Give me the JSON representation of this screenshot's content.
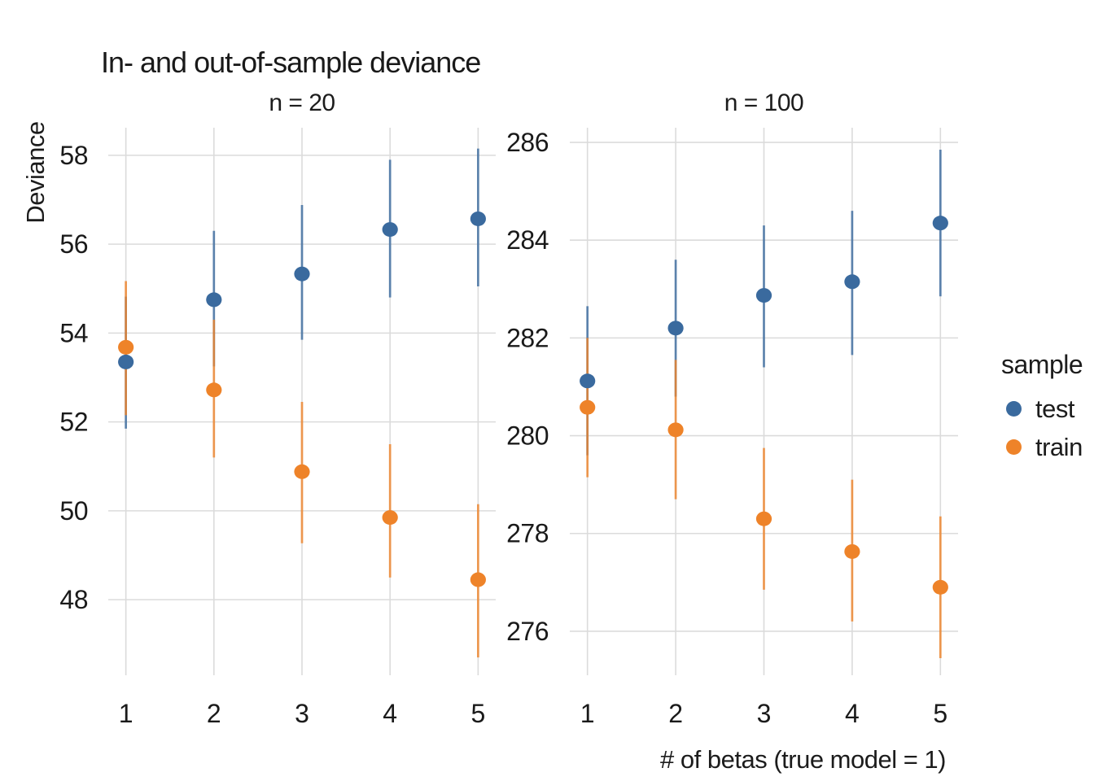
{
  "title": "In- and out-of-sample deviance",
  "y_axis_title": "Deviance",
  "x_axis_title": "# of betas (true model = 1)",
  "legend": {
    "title": "sample",
    "items": [
      {
        "label": "test",
        "color": "#3A6A9E"
      },
      {
        "label": "train",
        "color": "#EE8329"
      }
    ]
  },
  "style_colors": {
    "grid": "#DBDBDB",
    "tick_text": "#1A1A1A",
    "background": "#FFFFFF"
  },
  "chart_data": [
    {
      "type": "scatter",
      "facet": "n = 20",
      "x": [
        1,
        2,
        3,
        4,
        5
      ],
      "xlim": [
        0.8,
        5.2
      ],
      "ylim": [
        46.3,
        58.62
      ],
      "yticks": [
        48,
        50,
        52,
        54,
        56,
        58
      ],
      "xticks": [
        1,
        2,
        3,
        4,
        5
      ],
      "grid": true,
      "series": [
        {
          "name": "test",
          "color": "#3A6A9E",
          "values": [
            53.35,
            54.75,
            55.33,
            56.33,
            56.57
          ],
          "lower": [
            51.85,
            53.25,
            53.85,
            54.8,
            55.05
          ],
          "upper": [
            54.82,
            56.3,
            56.88,
            57.9,
            58.15
          ]
        },
        {
          "name": "train",
          "color": "#EE8329",
          "values": [
            53.68,
            52.72,
            50.88,
            49.85,
            48.45
          ],
          "lower": [
            52.15,
            51.2,
            49.27,
            48.5,
            46.7
          ],
          "upper": [
            55.17,
            54.3,
            52.45,
            51.5,
            50.15
          ]
        }
      ]
    },
    {
      "type": "scatter",
      "facet": "n = 100",
      "x": [
        1,
        2,
        3,
        4,
        5
      ],
      "xlim": [
        0.8,
        5.2
      ],
      "ylim": [
        275.1,
        286.3
      ],
      "yticks": [
        276,
        278,
        280,
        282,
        284,
        286
      ],
      "xticks": [
        1,
        2,
        3,
        4,
        5
      ],
      "grid": true,
      "series": [
        {
          "name": "test",
          "color": "#3A6A9E",
          "values": [
            281.12,
            282.2,
            282.87,
            283.15,
            284.35
          ],
          "lower": [
            279.6,
            280.8,
            281.4,
            281.65,
            282.85
          ],
          "upper": [
            282.65,
            283.6,
            284.3,
            284.6,
            285.85
          ]
        },
        {
          "name": "train",
          "color": "#EE8329",
          "values": [
            280.58,
            280.12,
            278.3,
            277.63,
            276.9
          ],
          "lower": [
            279.15,
            278.7,
            276.85,
            276.2,
            275.45
          ],
          "upper": [
            282.0,
            281.55,
            279.75,
            279.1,
            278.35
          ]
        }
      ]
    }
  ]
}
